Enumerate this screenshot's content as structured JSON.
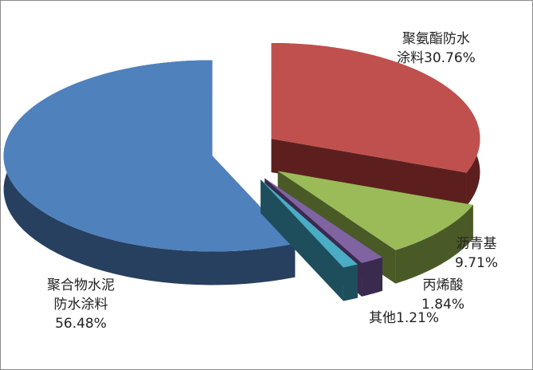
{
  "chart_data": {
    "type": "pie",
    "style": "3d-exploded",
    "title": "",
    "slices": [
      {
        "label_lines": [
          "聚氨酯防水",
          "涂料30.76%"
        ],
        "name": "聚氨酯防水涂料",
        "value": 30.76,
        "color": "#C0504D",
        "side": "#5C1F1E"
      },
      {
        "label_lines": [
          "沥青基",
          "9.71%"
        ],
        "name": "沥青基",
        "value": 9.71,
        "color": "#9BBB59",
        "side": "#4A5A26"
      },
      {
        "label_lines": [
          "丙烯酸",
          "1.84%"
        ],
        "name": "丙烯酸",
        "value": 1.84,
        "color": "#8064A2",
        "side": "#3A2A4E"
      },
      {
        "label_lines": [
          "其他1.21%"
        ],
        "name": "其他",
        "value": 1.21,
        "color": "#4BACC6",
        "side": "#1E4E5C"
      },
      {
        "label_lines": [
          "聚合物水泥",
          "防水涂料",
          "56.48%"
        ],
        "name": "聚合物水泥防水涂料",
        "value": 56.48,
        "color": "#4F81BD",
        "side": "#27405F"
      }
    ]
  }
}
